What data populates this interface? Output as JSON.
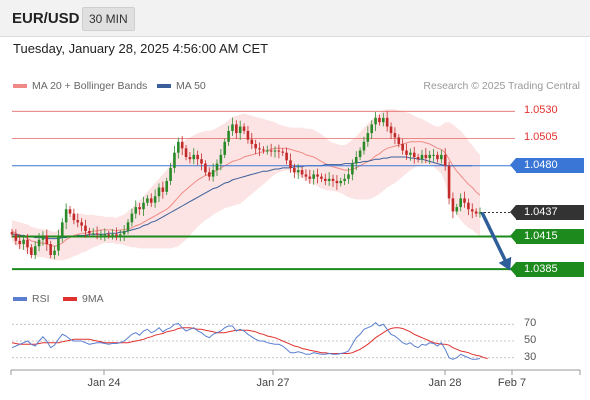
{
  "header": {
    "symbol": "EUR/USD",
    "timeframe": "30 MIN"
  },
  "datetime": "Tuesday, January 28, 2025 4:56:00 AM CET",
  "legend": {
    "bollinger": {
      "label": "MA 20 + Bollinger Bands",
      "color": "#f08a85"
    },
    "ma50": {
      "label": "MA 50",
      "color": "#3a5f9a"
    }
  },
  "credit": "Research © 2025 Trading Central",
  "rsi_legend": {
    "rsi": {
      "label": "RSI",
      "color": "#5a7fd0"
    },
    "ma9": {
      "label": "9MA",
      "color": "#e0312e"
    }
  },
  "colors": {
    "up": "#2a8a2a",
    "down": "#c22a2a",
    "support": "#1d8a1d",
    "pivot": "#3a76d6",
    "resistance": "#e36a66",
    "arrow": "#2f5f9a",
    "current": "#333333"
  },
  "chart_data": [
    {
      "type": "line",
      "chart": "price",
      "ylim": [
        1.0375,
        1.0545
      ],
      "x_ticks": [
        "Jan 24",
        "Jan 27",
        "Jan 28",
        "Feb 7"
      ],
      "levels": [
        {
          "name": "resistance-1",
          "value": 1.053,
          "label": "1.0530",
          "kind": "resistance"
        },
        {
          "name": "resistance-2",
          "value": 1.0505,
          "label": "1.0505",
          "kind": "resistance"
        },
        {
          "name": "pivot",
          "value": 1.048,
          "label": "1.0480",
          "kind": "pivot"
        },
        {
          "name": "current",
          "value": 1.0437,
          "label": "1.0437",
          "kind": "current"
        },
        {
          "name": "support-1",
          "value": 1.0415,
          "label": "1.0415",
          "kind": "support"
        },
        {
          "name": "support-2",
          "value": 1.0385,
          "label": "1.0385",
          "kind": "support"
        }
      ],
      "close": [
        1.0417,
        1.0411,
        1.0408,
        1.0412,
        1.0405,
        1.0398,
        1.0406,
        1.0412,
        1.0416,
        1.0408,
        1.0398,
        1.0402,
        1.0415,
        1.0428,
        1.044,
        1.0436,
        1.043,
        1.0428,
        1.0425,
        1.042,
        1.0418,
        1.0418,
        1.0417,
        1.0417,
        1.0417,
        1.0416,
        1.0417,
        1.0416,
        1.0417,
        1.042,
        1.0428,
        1.0436,
        1.0442,
        1.044,
        1.0446,
        1.045,
        1.0446,
        1.0452,
        1.046,
        1.0456,
        1.0466,
        1.0478,
        1.0492,
        1.0502,
        1.0496,
        1.0488,
        1.0486,
        1.049,
        1.0486,
        1.0482,
        1.0474,
        1.047,
        1.0476,
        1.0482,
        1.049,
        1.0502,
        1.0512,
        1.0518,
        1.051,
        1.0516,
        1.0512,
        1.0504,
        1.05,
        1.0496,
        1.0495,
        1.0494,
        1.0494,
        1.0493,
        1.0494,
        1.0493,
        1.0492,
        1.0485,
        1.0478,
        1.0474,
        1.0476,
        1.0472,
        1.047,
        1.0468,
        1.0472,
        1.047,
        1.0468,
        1.0466,
        1.0468,
        1.0466,
        1.0464,
        1.0466,
        1.0468,
        1.0472,
        1.0482,
        1.0488,
        1.0494,
        1.0502,
        1.051,
        1.0518,
        1.0524,
        1.052,
        1.0524,
        1.0516,
        1.051,
        1.0506,
        1.05,
        1.0494,
        1.049,
        1.0492,
        1.0488,
        1.0486,
        1.049,
        1.0487,
        1.049,
        1.049,
        1.0486,
        1.049,
        1.048,
        1.045,
        1.0438,
        1.0442,
        1.045,
        1.0446,
        1.044,
        1.0438,
        1.0436,
        1.0437
      ],
      "ma20": [
        1.042,
        1.0418,
        1.0416,
        1.0415,
        1.0413,
        1.0411,
        1.041,
        1.0409,
        1.0409,
        1.0408,
        1.0407,
        1.0406,
        1.0407,
        1.0409,
        1.0412,
        1.0414,
        1.0416,
        1.0417,
        1.0418,
        1.0418,
        1.0419,
        1.042,
        1.042,
        1.0421,
        1.0421,
        1.0421,
        1.0421,
        1.042,
        1.0421,
        1.0421,
        1.0422,
        1.0423,
        1.0425,
        1.0426,
        1.0428,
        1.043,
        1.0432,
        1.0434,
        1.0436,
        1.0438,
        1.044,
        1.0443,
        1.0447,
        1.0451,
        1.0455,
        1.0458,
        1.0461,
        1.0464,
        1.0467,
        1.0469,
        1.0471,
        1.0472,
        1.0474,
        1.0476,
        1.0478,
        1.048,
        1.0482,
        1.0484,
        1.0485,
        1.0486,
        1.0488,
        1.0489,
        1.049,
        1.0491,
        1.0492,
        1.0493,
        1.0494,
        1.0495,
        1.0496,
        1.0496,
        1.0496,
        1.0496,
        1.0495,
        1.0494,
        1.0493,
        1.0492,
        1.049,
        1.0489,
        1.0488,
        1.0486,
        1.0484,
        1.0482,
        1.048,
        1.0479,
        1.0478,
        1.0477,
        1.0476,
        1.0476,
        1.0477,
        1.0478,
        1.048,
        1.0482,
        1.0484,
        1.0486,
        1.0489,
        1.0491,
        1.0494,
        1.0496,
        1.0497,
        1.0498,
        1.0499,
        1.05,
        1.0501,
        1.0502,
        1.0502,
        1.0502,
        1.0502,
        1.0501,
        1.05,
        1.0498,
        1.0496,
        1.0495,
        1.0492,
        1.0486,
        1.048,
        1.0475,
        1.0471,
        1.0467,
        1.0463,
        1.046,
        1.0456,
        1.0453
      ],
      "bb_width": [
        0.001,
        0.0011,
        0.0012,
        0.0012,
        0.0013,
        0.0013,
        0.0013,
        0.0013,
        0.0013,
        0.0013,
        0.0013,
        0.0013,
        0.0014,
        0.0016,
        0.0018,
        0.0019,
        0.0019,
        0.0019,
        0.0018,
        0.0017,
        0.0016,
        0.0015,
        0.0014,
        0.0013,
        0.0012,
        0.0012,
        0.0012,
        0.0012,
        0.0013,
        0.0014,
        0.0016,
        0.0018,
        0.002,
        0.0022,
        0.0024,
        0.0026,
        0.0028,
        0.003,
        0.0032,
        0.0034,
        0.0036,
        0.0039,
        0.0042,
        0.0045,
        0.0046,
        0.0046,
        0.0045,
        0.0044,
        0.0043,
        0.0042,
        0.0041,
        0.004,
        0.0039,
        0.0039,
        0.0039,
        0.0039,
        0.004,
        0.0041,
        0.0041,
        0.0041,
        0.004,
        0.0038,
        0.0036,
        0.0034,
        0.0032,
        0.003,
        0.0028,
        0.0026,
        0.0024,
        0.0022,
        0.0021,
        0.002,
        0.002,
        0.0021,
        0.0022,
        0.0023,
        0.0024,
        0.0025,
        0.0025,
        0.0025,
        0.0025,
        0.0024,
        0.0023,
        0.0022,
        0.0022,
        0.0022,
        0.0023,
        0.0025,
        0.0027,
        0.0029,
        0.0031,
        0.0033,
        0.0035,
        0.0036,
        0.0037,
        0.0037,
        0.0037,
        0.0036,
        0.0035,
        0.0034,
        0.0032,
        0.003,
        0.0028,
        0.0026,
        0.0024,
        0.0022,
        0.0021,
        0.002,
        0.0019,
        0.0019,
        0.002,
        0.0022,
        0.0028,
        0.0034,
        0.0038,
        0.004,
        0.0041,
        0.0041,
        0.004,
        0.0039,
        0.0038,
        0.0037
      ],
      "ma50": [
        1.0417,
        1.0417,
        1.0416,
        1.0416,
        1.0415,
        1.0415,
        1.0414,
        1.0414,
        1.0414,
        1.0413,
        1.0413,
        1.0413,
        1.0413,
        1.0414,
        1.0414,
        1.0415,
        1.0415,
        1.0416,
        1.0416,
        1.0416,
        1.0417,
        1.0417,
        1.0417,
        1.0417,
        1.0417,
        1.0418,
        1.0418,
        1.0418,
        1.0419,
        1.0419,
        1.042,
        1.0421,
        1.0422,
        1.0423,
        1.0425,
        1.0426,
        1.0428,
        1.0429,
        1.0431,
        1.0433,
        1.0435,
        1.0437,
        1.0439,
        1.0441,
        1.0443,
        1.0445,
        1.0447,
        1.0449,
        1.0451,
        1.0453,
        1.0455,
        1.0457,
        1.0459,
        1.046,
        1.0462,
        1.0464,
        1.0465,
        1.0467,
        1.0468,
        1.0469,
        1.047,
        1.0471,
        1.0472,
        1.0473,
        1.0474,
        1.0475,
        1.0475,
        1.0476,
        1.0477,
        1.0477,
        1.0478,
        1.0478,
        1.0478,
        1.0479,
        1.0479,
        1.0479,
        1.048,
        1.048,
        1.048,
        1.048,
        1.048,
        1.0481,
        1.0481,
        1.0481,
        1.0481,
        1.0481,
        1.0482,
        1.0482,
        1.0482,
        1.0483,
        1.0483,
        1.0484,
        1.0484,
        1.0485,
        1.0486,
        1.0486,
        1.0487,
        1.0487,
        1.0488,
        1.0488,
        1.0488,
        1.0488,
        1.0488,
        1.0487,
        1.0487,
        1.0486,
        1.0486,
        1.0485,
        1.0484,
        1.0483,
        1.0482,
        1.0481,
        1.048,
        1.048,
        1.048,
        1.048,
        1.048,
        1.048,
        1.048,
        1.048
      ],
      "projection": {
        "from": 1.0437,
        "to": 1.0385
      }
    },
    {
      "type": "line",
      "chart": "rsi",
      "ylim": [
        20,
        80
      ],
      "y_ticks": [
        70,
        50,
        30
      ],
      "rsi": [
        42,
        44,
        46,
        48,
        50,
        46,
        44,
        50,
        55,
        50,
        42,
        45,
        52,
        58,
        56,
        52,
        50,
        50,
        50,
        48,
        46,
        47,
        48,
        48,
        47,
        46,
        47,
        47,
        48,
        50,
        54,
        58,
        60,
        57,
        62,
        64,
        60,
        62,
        66,
        61,
        64,
        66,
        70,
        71,
        66,
        62,
        64,
        66,
        62,
        60,
        56,
        54,
        58,
        60,
        62,
        66,
        68,
        68,
        62,
        64,
        62,
        58,
        55,
        52,
        50,
        50,
        48,
        47,
        46,
        46,
        44,
        40,
        36,
        36,
        37,
        36,
        34,
        34,
        36,
        35,
        34,
        34,
        35,
        34,
        34,
        35,
        36,
        38,
        46,
        54,
        58,
        64,
        66,
        68,
        72,
        68,
        70,
        64,
        58,
        56,
        52,
        48,
        46,
        48,
        44,
        42,
        46,
        45,
        48,
        47,
        44,
        48,
        40,
        30,
        28,
        30,
        34,
        32,
        30,
        28,
        28,
        29
      ],
      "ma9": [
        48,
        47,
        46,
        46,
        46,
        46,
        46,
        47,
        48,
        48,
        48,
        48,
        48,
        49,
        50,
        51,
        52,
        52,
        52,
        52,
        52,
        51,
        50,
        49,
        48,
        48,
        48,
        48,
        48,
        48,
        48,
        49,
        50,
        51,
        52,
        54,
        55,
        57,
        58,
        59,
        61,
        62,
        63,
        65,
        66,
        66,
        66,
        65,
        64,
        64,
        63,
        62,
        61,
        60,
        60,
        60,
        61,
        62,
        63,
        63,
        63,
        63,
        62,
        61,
        59,
        58,
        56,
        55,
        54,
        52,
        50,
        48,
        46,
        44,
        43,
        41,
        40,
        39,
        38,
        37,
        36,
        36,
        35,
        35,
        35,
        35,
        35,
        35,
        36,
        38,
        40,
        43,
        46,
        50,
        54,
        57,
        60,
        63,
        65,
        66,
        66,
        65,
        63,
        61,
        58,
        56,
        54,
        52,
        50,
        48,
        47,
        46,
        46,
        45,
        42,
        40,
        38,
        37,
        36,
        34,
        33,
        32,
        30,
        29
      ]
    }
  ]
}
